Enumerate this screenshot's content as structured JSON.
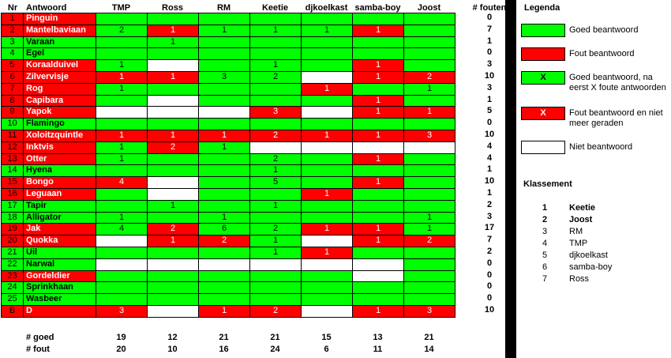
{
  "colors": {
    "good": "#00ff00",
    "bad": "#ff0000",
    "none": "#ffffff",
    "black": "#000000"
  },
  "headers": {
    "nr": "Nr",
    "antwoord": "Antwoord",
    "fouten": "# fouten"
  },
  "players": [
    "TMP",
    "Ross",
    "RM",
    "Keetie",
    "djkoelkast",
    "samba-boy",
    "Joost"
  ],
  "rows": [
    {
      "nr": "1",
      "name": "Pinguin",
      "name_status": "R",
      "fouten": "0",
      "cells": [
        [
          "G",
          ""
        ],
        [
          "G",
          ""
        ],
        [
          "G",
          ""
        ],
        [
          "G",
          ""
        ],
        [
          "G",
          ""
        ],
        [
          "G",
          ""
        ],
        [
          "G",
          ""
        ]
      ]
    },
    {
      "nr": "2",
      "name": "Mantelbaviaan",
      "name_status": "R",
      "fouten": "7",
      "cells": [
        [
          "G",
          "2"
        ],
        [
          "R",
          "1"
        ],
        [
          "G",
          "1"
        ],
        [
          "G",
          "1"
        ],
        [
          "G",
          "1"
        ],
        [
          "R",
          "1"
        ],
        [
          "G",
          ""
        ]
      ]
    },
    {
      "nr": "3",
      "name": "Varaan",
      "name_status": "G",
      "fouten": "1",
      "cells": [
        [
          "G",
          ""
        ],
        [
          "G",
          "1"
        ],
        [
          "G",
          ""
        ],
        [
          "G",
          ""
        ],
        [
          "G",
          ""
        ],
        [
          "G",
          ""
        ],
        [
          "G",
          ""
        ]
      ]
    },
    {
      "nr": "4",
      "name": "Egel",
      "name_status": "G",
      "fouten": "0",
      "cells": [
        [
          "G",
          ""
        ],
        [
          "G",
          ""
        ],
        [
          "G",
          ""
        ],
        [
          "G",
          ""
        ],
        [
          "G",
          ""
        ],
        [
          "G",
          ""
        ],
        [
          "G",
          ""
        ]
      ]
    },
    {
      "nr": "5",
      "name": "Koraalduivel",
      "name_status": "R",
      "fouten": "3",
      "cells": [
        [
          "G",
          "1"
        ],
        [
          "W",
          ""
        ],
        [
          "G",
          ""
        ],
        [
          "G",
          "1"
        ],
        [
          "G",
          ""
        ],
        [
          "R",
          "1"
        ],
        [
          "G",
          ""
        ]
      ]
    },
    {
      "nr": "6",
      "name": "Zilvervisje",
      "name_status": "R",
      "fouten": "10",
      "cells": [
        [
          "R",
          "1"
        ],
        [
          "R",
          "1"
        ],
        [
          "G",
          "3"
        ],
        [
          "G",
          "2"
        ],
        [
          "W",
          ""
        ],
        [
          "R",
          "1"
        ],
        [
          "R",
          "2"
        ]
      ]
    },
    {
      "nr": "7",
      "name": "Rog",
      "name_status": "R",
      "fouten": "3",
      "cells": [
        [
          "G",
          "1"
        ],
        [
          "G",
          ""
        ],
        [
          "G",
          ""
        ],
        [
          "G",
          ""
        ],
        [
          "R",
          "1"
        ],
        [
          "G",
          ""
        ],
        [
          "G",
          "1"
        ]
      ]
    },
    {
      "nr": "8",
      "name": "Capibara",
      "name_status": "R",
      "fouten": "1",
      "cells": [
        [
          "G",
          ""
        ],
        [
          "W",
          ""
        ],
        [
          "G",
          ""
        ],
        [
          "G",
          ""
        ],
        [
          "G",
          ""
        ],
        [
          "R",
          "1"
        ],
        [
          "G",
          ""
        ]
      ]
    },
    {
      "nr": "9",
      "name": "Yapok",
      "name_status": "R",
      "fouten": "5",
      "cells": [
        [
          "W",
          ""
        ],
        [
          "W",
          ""
        ],
        [
          "W",
          ""
        ],
        [
          "R",
          "3"
        ],
        [
          "W",
          ""
        ],
        [
          "R",
          "1"
        ],
        [
          "R",
          "1"
        ]
      ]
    },
    {
      "nr": "10",
      "name": "Flamingo",
      "name_status": "G",
      "fouten": "0",
      "cells": [
        [
          "G",
          ""
        ],
        [
          "G",
          ""
        ],
        [
          "G",
          ""
        ],
        [
          "G",
          ""
        ],
        [
          "G",
          ""
        ],
        [
          "G",
          ""
        ],
        [
          "G",
          ""
        ]
      ]
    },
    {
      "nr": "11",
      "name": "Xoloitzquintle",
      "name_status": "R",
      "fouten": "10",
      "cells": [
        [
          "R",
          "1"
        ],
        [
          "R",
          "1"
        ],
        [
          "R",
          "1"
        ],
        [
          "R",
          "2"
        ],
        [
          "R",
          "1"
        ],
        [
          "R",
          "1"
        ],
        [
          "R",
          "3"
        ]
      ]
    },
    {
      "nr": "12",
      "name": "Inktvis",
      "name_status": "R",
      "fouten": "4",
      "cells": [
        [
          "G",
          "1"
        ],
        [
          "R",
          "2"
        ],
        [
          "G",
          "1"
        ],
        [
          "W",
          ""
        ],
        [
          "W",
          ""
        ],
        [
          "W",
          ""
        ],
        [
          "W",
          ""
        ]
      ]
    },
    {
      "nr": "13",
      "name": "Otter",
      "name_status": "R",
      "fouten": "4",
      "cells": [
        [
          "G",
          "1"
        ],
        [
          "G",
          ""
        ],
        [
          "G",
          ""
        ],
        [
          "G",
          "2"
        ],
        [
          "G",
          ""
        ],
        [
          "R",
          "1"
        ],
        [
          "G",
          ""
        ]
      ]
    },
    {
      "nr": "14",
      "name": "Hyena",
      "name_status": "G",
      "fouten": "1",
      "cells": [
        [
          "G",
          ""
        ],
        [
          "G",
          ""
        ],
        [
          "G",
          ""
        ],
        [
          "G",
          "1"
        ],
        [
          "G",
          ""
        ],
        [
          "G",
          ""
        ],
        [
          "G",
          ""
        ]
      ]
    },
    {
      "nr": "15",
      "name": "Bongo",
      "name_status": "R",
      "fouten": "10",
      "cells": [
        [
          "R",
          "4"
        ],
        [
          "W",
          ""
        ],
        [
          "G",
          ""
        ],
        [
          "G",
          "5"
        ],
        [
          "G",
          ""
        ],
        [
          "R",
          "1"
        ],
        [
          "G",
          ""
        ]
      ]
    },
    {
      "nr": "16",
      "name": "Leguaan",
      "name_status": "R",
      "fouten": "1",
      "cells": [
        [
          "G",
          ""
        ],
        [
          "W",
          ""
        ],
        [
          "G",
          ""
        ],
        [
          "G",
          ""
        ],
        [
          "R",
          "1"
        ],
        [
          "G",
          ""
        ],
        [
          "G",
          ""
        ]
      ]
    },
    {
      "nr": "17",
      "name": "Tapir",
      "name_status": "G",
      "fouten": "2",
      "cells": [
        [
          "G",
          ""
        ],
        [
          "G",
          "1"
        ],
        [
          "G",
          ""
        ],
        [
          "G",
          "1"
        ],
        [
          "G",
          ""
        ],
        [
          "G",
          ""
        ],
        [
          "G",
          ""
        ]
      ]
    },
    {
      "nr": "18",
      "name": "Alligator",
      "name_status": "G",
      "fouten": "3",
      "cells": [
        [
          "G",
          "1"
        ],
        [
          "G",
          ""
        ],
        [
          "G",
          "1"
        ],
        [
          "G",
          ""
        ],
        [
          "G",
          ""
        ],
        [
          "G",
          ""
        ],
        [
          "G",
          "1"
        ]
      ]
    },
    {
      "nr": "19",
      "name": "Jak",
      "name_status": "R",
      "fouten": "17",
      "cells": [
        [
          "G",
          "4"
        ],
        [
          "R",
          "2"
        ],
        [
          "G",
          "6"
        ],
        [
          "G",
          "2"
        ],
        [
          "R",
          "1"
        ],
        [
          "R",
          "1"
        ],
        [
          "G",
          "1"
        ]
      ]
    },
    {
      "nr": "20",
      "name": "Quokka",
      "name_status": "R",
      "fouten": "7",
      "cells": [
        [
          "W",
          ""
        ],
        [
          "R",
          "1"
        ],
        [
          "R",
          "2"
        ],
        [
          "G",
          "1"
        ],
        [
          "W",
          ""
        ],
        [
          "R",
          "1"
        ],
        [
          "R",
          "2"
        ]
      ]
    },
    {
      "nr": "21",
      "name": "Uil",
      "name_status": "G",
      "fouten": "2",
      "cells": [
        [
          "G",
          ""
        ],
        [
          "G",
          ""
        ],
        [
          "G",
          ""
        ],
        [
          "G",
          "1"
        ],
        [
          "R",
          "1"
        ],
        [
          "G",
          ""
        ],
        [
          "G",
          ""
        ]
      ]
    },
    {
      "nr": "22",
      "name": "Narwal",
      "name_status": "G",
      "fouten": "0",
      "cells": [
        [
          "W",
          ""
        ],
        [
          "W",
          ""
        ],
        [
          "W",
          ""
        ],
        [
          "W",
          ""
        ],
        [
          "W",
          ""
        ],
        [
          "W",
          ""
        ],
        [
          "G",
          ""
        ]
      ]
    },
    {
      "nr": "23",
      "name": "Gordeldier",
      "name_status": "R",
      "fouten": "0",
      "cells": [
        [
          "G",
          ""
        ],
        [
          "G",
          ""
        ],
        [
          "G",
          ""
        ],
        [
          "G",
          ""
        ],
        [
          "G",
          ""
        ],
        [
          "W",
          ""
        ],
        [
          "G",
          ""
        ]
      ]
    },
    {
      "nr": "24",
      "name": "Sprinkhaan",
      "name_status": "G",
      "fouten": "0",
      "cells": [
        [
          "G",
          ""
        ],
        [
          "G",
          ""
        ],
        [
          "G",
          ""
        ],
        [
          "G",
          ""
        ],
        [
          "G",
          ""
        ],
        [
          "G",
          ""
        ],
        [
          "G",
          ""
        ]
      ]
    },
    {
      "nr": "25",
      "name": "Wasbeer",
      "name_status": "G",
      "fouten": "0",
      "cells": [
        [
          "G",
          ""
        ],
        [
          "G",
          ""
        ],
        [
          "G",
          ""
        ],
        [
          "G",
          ""
        ],
        [
          "G",
          ""
        ],
        [
          "G",
          ""
        ],
        [
          "G",
          ""
        ]
      ]
    },
    {
      "nr": "B",
      "name": "D",
      "name_status": "R",
      "fouten": "10",
      "cells": [
        [
          "R",
          "3"
        ],
        [
          "W",
          ""
        ],
        [
          "R",
          "1"
        ],
        [
          "R",
          "2"
        ],
        [
          "W",
          ""
        ],
        [
          "R",
          "1"
        ],
        [
          "R",
          "3"
        ]
      ]
    }
  ],
  "summary": {
    "goed_label": "# goed",
    "fout_label": "# fout",
    "goed": [
      "19",
      "12",
      "21",
      "21",
      "15",
      "13",
      "21"
    ],
    "fout": [
      "20",
      "10",
      "16",
      "24",
      "6",
      "11",
      "14"
    ]
  },
  "legend": {
    "title": "Legenda",
    "items": [
      {
        "color": "G",
        "mark": "",
        "label": "Goed beantwoord"
      },
      {
        "color": "R",
        "mark": "",
        "label": "Fout beantwoord"
      },
      {
        "color": "G",
        "mark": "X",
        "label": "Goed beantwoord, na eerst X foute antwoorden"
      },
      {
        "color": "R",
        "mark": "X",
        "label": "Fout beantwoord en niet meer geraden"
      },
      {
        "color": "W",
        "mark": "",
        "label": "Niet beantwoord"
      }
    ]
  },
  "klassement": {
    "title": "Klassement",
    "items": [
      {
        "rank": "1",
        "name": "Keetie",
        "bold": true
      },
      {
        "rank": "2",
        "name": "Joost",
        "bold": true
      },
      {
        "rank": "3",
        "name": "RM",
        "bold": false
      },
      {
        "rank": "4",
        "name": "TMP",
        "bold": false
      },
      {
        "rank": "5",
        "name": "djkoelkast",
        "bold": false
      },
      {
        "rank": "6",
        "name": "samba-boy",
        "bold": false
      },
      {
        "rank": "7",
        "name": "Ross",
        "bold": false
      }
    ]
  }
}
